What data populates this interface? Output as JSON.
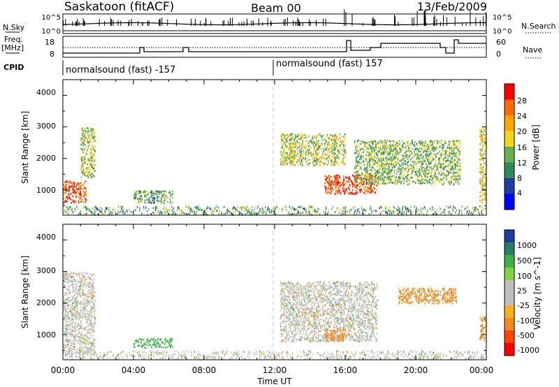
{
  "header": {
    "station": "Saskatoon (fitACF)",
    "beam": "Beam 00",
    "date": "13/Feb/2009"
  },
  "labels": {
    "nsky": "N.Sky",
    "freq_line1": "Freq.",
    "freq_line2": "[MHz]",
    "cpid": "CPID",
    "nsearch": "N.Search",
    "nave": "Nave"
  },
  "nsky_ticks": [
    "10^5",
    "10^0"
  ],
  "nsearch_ticks": [
    "10^5",
    "10^0"
  ],
  "freq_ticks": [
    "18",
    "8"
  ],
  "nave_ticks": [
    "60",
    "0"
  ],
  "cpid_segments": [
    {
      "label": "normalsound (fast) -157",
      "start_hour": 0
    },
    {
      "label": "normalsound (fast) 157",
      "start_hour": 12
    }
  ],
  "x_ticks": [
    "00:00",
    "04:00",
    "08:00",
    "12:00",
    "16:00",
    "20:00",
    "00:00"
  ],
  "x_axis_label": "Time UT",
  "y_axis_label": "Slant Range [km]",
  "y_ticks": [
    "4000",
    "3000",
    "2000",
    "1000"
  ],
  "power_colorbar": {
    "title": "Power [dB]",
    "labels": [
      "28",
      "24",
      "20",
      "16",
      "12",
      "8",
      "4"
    ],
    "colors": [
      "#ff0000",
      "#ff6a00",
      "#ffa500",
      "#f2d51c",
      "#66b050",
      "#2f8a5a",
      "#1e3fa0",
      "#0000ff"
    ]
  },
  "velocity_colorbar": {
    "title": "Velocity [m s^-1]",
    "labels": [
      "1000",
      "500",
      "100",
      "25",
      "-25",
      "-100",
      "-500",
      "-1000"
    ],
    "colors": [
      "#1f3b9b",
      "#2a7a6a",
      "#3cb34a",
      "#7fd540",
      "#c0c0c0",
      "#c0c0c0",
      "#f6b21e",
      "#f08a1c",
      "#ff4500",
      "#ff0000"
    ]
  },
  "chart_data": {
    "type": "heatmap",
    "x_range_hours": [
      0,
      24
    ],
    "y_range_km": [
      200,
      4500
    ],
    "power_regions": [
      {
        "t": [
          0.0,
          1.3
        ],
        "r": [
          600,
          1300
        ],
        "value_db": 26
      },
      {
        "t": [
          1.0,
          1.8
        ],
        "r": [
          1400,
          3000
        ],
        "value_db": 14
      },
      {
        "t": [
          4.0,
          6.2
        ],
        "r": [
          600,
          1000
        ],
        "value_db": 10
      },
      {
        "t": [
          12.3,
          16.0
        ],
        "r": [
          1800,
          2800
        ],
        "value_db": 14
      },
      {
        "t": [
          14.8,
          17.8
        ],
        "r": [
          900,
          1500
        ],
        "value_db": 26
      },
      {
        "t": [
          16.5,
          22.5
        ],
        "r": [
          1200,
          2600
        ],
        "value_db": 12
      },
      {
        "t": [
          23.6,
          24.0
        ],
        "r": [
          600,
          3000
        ],
        "value_db": 16
      }
    ],
    "velocity_regions": [
      {
        "t": [
          0.0,
          1.8
        ],
        "r": [
          400,
          3000
        ],
        "value_ms": 0
      },
      {
        "t": [
          4.0,
          6.2
        ],
        "r": [
          600,
          900
        ],
        "value_ms": 100
      },
      {
        "t": [
          12.3,
          17.8
        ],
        "r": [
          800,
          2700
        ],
        "value_ms": 0
      },
      {
        "t": [
          14.8,
          16.0
        ],
        "r": [
          800,
          1200
        ],
        "value_ms": -100
      },
      {
        "t": [
          19.0,
          22.3
        ],
        "r": [
          2000,
          2500
        ],
        "value_ms": -100
      },
      {
        "t": [
          23.6,
          24.0
        ],
        "r": [
          800,
          1600
        ],
        "value_ms": -100
      }
    ]
  }
}
